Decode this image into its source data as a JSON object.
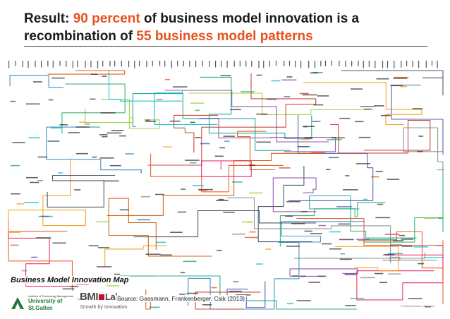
{
  "slide": {
    "title_line1_prefix": "Result: ",
    "title_highlight1": "90 percent",
    "title_line1_suffix": " of business model innovation is a",
    "title_line2_prefix": "recombination of ",
    "title_highlight2": "55 business model patterns",
    "map_caption": "Business Model Innovation Map",
    "source": "Source: Gassmann, Frankenberger, Csik (2013)",
    "copyright": "©Tracey Buhlmann, HSG 2014"
  },
  "logos": {
    "hsg_institute": "Institute of Technology Management",
    "hsg_name": "University of St.Gallen",
    "bmi_left": "BMI",
    "bmi_right": "Lab",
    "bmi_tagline": "Growth by Innovation"
  },
  "colors": {
    "accent": "#e8511f",
    "title": "#1a1a1a",
    "hsg_green": "#1f7a3e",
    "bmi_red": "#c8102e"
  },
  "map_line_colors": [
    "#e8511f",
    "#8e44ad",
    "#2e86c1",
    "#27ae60",
    "#c0392b",
    "#f39c12",
    "#16a085",
    "#34495e",
    "#d35400",
    "#7f8c8d",
    "#e91e63",
    "#3f51b5",
    "#9acd32",
    "#00bcd4"
  ]
}
